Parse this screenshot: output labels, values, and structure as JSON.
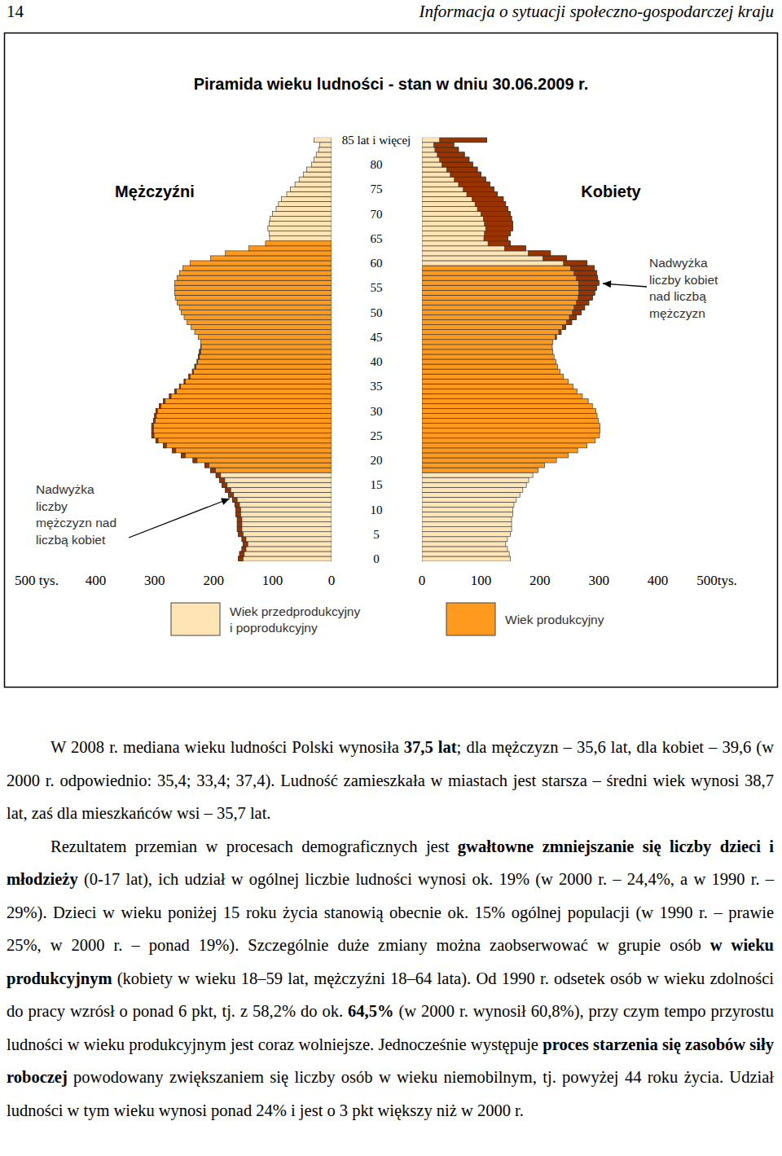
{
  "header": {
    "page_number": "14",
    "title": "Informacja o sytuacji społeczno-gospodarczej kraju"
  },
  "figure": {
    "title": "Piramida wieku ludności - stan w dniu 30.06.2009 r.",
    "legend_entries": [
      {
        "lines": [
          "Wiek przedprodukcyjny",
          "i poprodukcyjny"
        ],
        "color": "#FFE4B5"
      },
      {
        "lines": [
          "Wiek produkcyjny"
        ],
        "color": "#FF9A1F"
      }
    ]
  },
  "chart_data": [
    {
      "type": "bar",
      "orientation": "horizontal",
      "title": "Mężczyźni",
      "categories": [
        "0",
        null,
        null,
        null,
        null,
        "5",
        null,
        null,
        null,
        null,
        "10",
        null,
        null,
        null,
        null,
        "15",
        null,
        null,
        null,
        null,
        "20",
        null,
        null,
        null,
        null,
        "25",
        null,
        null,
        null,
        null,
        "30",
        null,
        null,
        null,
        null,
        "35",
        null,
        null,
        null,
        null,
        "40",
        null,
        null,
        null,
        null,
        "45",
        null,
        null,
        null,
        null,
        "50",
        null,
        null,
        null,
        null,
        "55",
        null,
        null,
        null,
        null,
        "60",
        null,
        null,
        null,
        null,
        "65",
        null,
        null,
        null,
        null,
        "70",
        null,
        null,
        null,
        null,
        "75",
        null,
        null,
        null,
        null,
        "80",
        null,
        null,
        null,
        null,
        "85 lat i więcej"
      ],
      "series": [
        {
          "values": [
            158,
            156,
            152,
            150,
            152,
            158,
            160,
            160,
            160,
            162,
            162,
            164,
            168,
            175,
            180,
            186,
            190,
            196,
            205,
            215,
            235,
            255,
            270,
            285,
            298,
            305,
            305,
            305,
            302,
            300,
            298,
            292,
            285,
            275,
            266,
            258,
            250,
            242,
            236,
            232,
            228,
            226,
            224,
            222,
            222,
            226,
            232,
            238,
            245,
            250,
            255,
            258,
            262,
            265,
            266,
            266,
            266,
            262,
            258,
            252,
            240,
            205,
            180,
            140,
            112,
            105,
            106,
            108,
            106,
            104,
            100,
            94,
            90,
            85,
            76,
            70,
            62,
            55,
            48,
            42,
            34,
            30,
            26,
            22,
            20,
            30
          ],
          "colors": [
            "#FFE4B5",
            "#FFE4B5",
            "#FFE4B5",
            "#FFE4B5",
            "#FFE4B5",
            "#FFE4B5",
            "#FFE4B5",
            "#FFE4B5",
            "#FFE4B5",
            "#FFE4B5",
            "#FFE4B5",
            "#FFE4B5",
            "#FFE4B5",
            "#FFE4B5",
            "#FFE4B5",
            "#FFE4B5",
            "#FFE4B5",
            "#FFE4B5",
            "#FF9A1F",
            "#FF9A1F",
            "#FF9A1F",
            "#FF9A1F",
            "#FF9A1F",
            "#FF9A1F",
            "#FF9A1F",
            "#FF9A1F",
            "#FF9A1F",
            "#FF9A1F",
            "#FF9A1F",
            "#FF9A1F",
            "#FF9A1F",
            "#FF9A1F",
            "#FF9A1F",
            "#FF9A1F",
            "#FF9A1F",
            "#FF9A1F",
            "#FF9A1F",
            "#FF9A1F",
            "#FF9A1F",
            "#FF9A1F",
            "#FF9A1F",
            "#FF9A1F",
            "#FF9A1F",
            "#FF9A1F",
            "#FF9A1F",
            "#FF9A1F",
            "#FF9A1F",
            "#FF9A1F",
            "#FF9A1F",
            "#FF9A1F",
            "#FF9A1F",
            "#FF9A1F",
            "#FF9A1F",
            "#FF9A1F",
            "#FF9A1F",
            "#FF9A1F",
            "#FF9A1F",
            "#FF9A1F",
            "#FF9A1F",
            "#FF9A1F",
            "#FF9A1F",
            "#FF9A1F",
            "#FF9A1F",
            "#FF9A1F",
            "#FF9A1F",
            "#FFE4B5",
            "#FFE4B5",
            "#FFE4B5",
            "#FFE4B5",
            "#FFE4B5",
            "#FFE4B5",
            "#FFE4B5",
            "#FFE4B5",
            "#FFE4B5",
            "#FFE4B5",
            "#FFE4B5",
            "#FFE4B5",
            "#FFE4B5",
            "#FFE4B5",
            "#FFE4B5",
            "#FFE4B5",
            "#FFE4B5",
            "#FFE4B5",
            "#FFE4B5",
            "#FFE4B5",
            "#FFE4B5"
          ]
        }
      ],
      "xlim": [
        500,
        0
      ],
      "xticks": [
        {
          "value": 500,
          "label": "500 tys."
        },
        400,
        300,
        200,
        100,
        0
      ],
      "annotations": [
        {
          "lines": [
            "Nadwyżka",
            "liczby",
            "mężczyzn nad",
            "liczbą kobiet"
          ],
          "color": "#993300"
        }
      ]
    },
    {
      "type": "bar",
      "orientation": "horizontal",
      "title": "Kobiety",
      "categories": [
        "0",
        null,
        null,
        null,
        null,
        "5",
        null,
        null,
        null,
        null,
        "10",
        null,
        null,
        null,
        null,
        "15",
        null,
        null,
        null,
        null,
        "20",
        null,
        null,
        null,
        null,
        "25",
        null,
        null,
        null,
        null,
        "30",
        null,
        null,
        null,
        null,
        "35",
        null,
        null,
        null,
        null,
        "40",
        null,
        null,
        null,
        null,
        "45",
        null,
        null,
        null,
        null,
        "50",
        null,
        null,
        null,
        null,
        "55",
        null,
        null,
        null,
        null,
        "60",
        null,
        null,
        null,
        null,
        "65",
        null,
        null,
        null,
        null,
        "70",
        null,
        null,
        null,
        null,
        "75",
        null,
        null,
        null,
        null,
        "80",
        null,
        null,
        null,
        null,
        "85 lat i więcej"
      ],
      "series": [
        {
          "values": [
            150,
            148,
            145,
            142,
            145,
            150,
            152,
            152,
            152,
            154,
            154,
            156,
            160,
            166,
            171,
            177,
            181,
            188,
            197,
            208,
            228,
            248,
            264,
            280,
            294,
            301,
            302,
            302,
            299,
            297,
            295,
            289,
            282,
            272,
            263,
            256,
            248,
            240,
            234,
            230,
            227,
            224,
            222,
            221,
            222,
            228,
            236,
            244,
            254,
            262,
            270,
            276,
            283,
            289,
            293,
            296,
            300,
            298,
            296,
            292,
            280,
            245,
            218,
            176,
            150,
            146,
            150,
            154,
            154,
            152,
            150,
            146,
            142,
            138,
            128,
            122,
            115,
            108,
            100,
            94,
            86,
            80,
            72,
            62,
            54,
            110
          ],
          "colors": [
            "#FFE4B5",
            "#FFE4B5",
            "#FFE4B5",
            "#FFE4B5",
            "#FFE4B5",
            "#FFE4B5",
            "#FFE4B5",
            "#FFE4B5",
            "#FFE4B5",
            "#FFE4B5",
            "#FFE4B5",
            "#FFE4B5",
            "#FFE4B5",
            "#FFE4B5",
            "#FFE4B5",
            "#FFE4B5",
            "#FFE4B5",
            "#FFE4B5",
            "#FF9A1F",
            "#FF9A1F",
            "#FF9A1F",
            "#FF9A1F",
            "#FF9A1F",
            "#FF9A1F",
            "#FF9A1F",
            "#FF9A1F",
            "#FF9A1F",
            "#FF9A1F",
            "#FF9A1F",
            "#FF9A1F",
            "#FF9A1F",
            "#FF9A1F",
            "#FF9A1F",
            "#FF9A1F",
            "#FF9A1F",
            "#FF9A1F",
            "#FF9A1F",
            "#FF9A1F",
            "#FF9A1F",
            "#FF9A1F",
            "#FF9A1F",
            "#FF9A1F",
            "#FF9A1F",
            "#FF9A1F",
            "#FF9A1F",
            "#FF9A1F",
            "#FF9A1F",
            "#FF9A1F",
            "#FF9A1F",
            "#FF9A1F",
            "#FF9A1F",
            "#FF9A1F",
            "#FF9A1F",
            "#FF9A1F",
            "#FF9A1F",
            "#FF9A1F",
            "#FF9A1F",
            "#FF9A1F",
            "#FF9A1F",
            "#FF9A1F",
            "#FFE4B5",
            "#FFE4B5",
            "#FFE4B5",
            "#FFE4B5",
            "#FFE4B5",
            "#FFE4B5",
            "#FFE4B5",
            "#FFE4B5",
            "#FFE4B5",
            "#FFE4B5",
            "#FFE4B5",
            "#FFE4B5",
            "#FFE4B5",
            "#FFE4B5",
            "#FFE4B5",
            "#FFE4B5",
            "#FFE4B5",
            "#FFE4B5",
            "#FFE4B5",
            "#FFE4B5",
            "#FFE4B5",
            "#FFE4B5",
            "#FFE4B5",
            "#FFE4B5",
            "#FFE4B5",
            "#FFE4B5"
          ]
        }
      ],
      "xlim": [
        0,
        500
      ],
      "xticks": [
        0,
        100,
        200,
        300,
        400,
        {
          "value": 500,
          "label": "500tys."
        }
      ],
      "annotations": [
        {
          "lines": [
            "Nadwyżka",
            "liczby kobiet",
            "nad liczbą",
            "mężczyzn"
          ],
          "color": "#993300"
        }
      ]
    }
  ],
  "body": {
    "paragraphs": [
      [
        {
          "text": "W 2008 r. mediana wieku ludności Polski wynosiła ",
          "bold": false
        },
        {
          "text": "37,5 lat",
          "bold": true
        },
        {
          "text": "; dla mężczyzn – 35,6 lat, dla kobiet – 39,6 (w 2000 r. odpowiednio: 35,4; 33,4; 37,4). Ludność zamieszkała w miastach jest starsza – średni wiek wynosi 38,7 lat, zaś dla mieszkańców wsi – 35,7 lat.",
          "bold": false
        }
      ],
      [
        {
          "text": "Rezultatem przemian w procesach demograficznych jest ",
          "bold": false
        },
        {
          "text": "gwałtowne zmniejszanie się liczby dzieci i młodzieży",
          "bold": true
        },
        {
          "text": " (0-17 lat), ich udział w ogólnej liczbie ludności wynosi ok. 19% (w 2000 r. – 24,4%, a w 1990 r. – 29%). Dzieci w wieku poniżej 15 roku życia stanowią obecnie ok. 15% ogólnej populacji (w 1990 r. – prawie 25%, w 2000 r. – ponad 19%). Szczególnie duże zmiany można zaobserwować w grupie osób ",
          "bold": false
        },
        {
          "text": "w wieku produkcyjnym",
          "bold": true
        },
        {
          "text": " (kobiety w wieku 18–59 lat, mężczyźni 18–64 lata). Od 1990 r. odsetek osób w wieku zdolności do pracy wzrósł o ponad 6 pkt, tj. z 58,2% do ok. ",
          "bold": false
        },
        {
          "text": "64,5%",
          "bold": true
        },
        {
          "text": " (w 2000 r. wynosił 60,8%), przy czym tempo przyrostu ludności w wieku produkcyjnym jest coraz wolniejsze. Jednocześnie występuje ",
          "bold": false
        },
        {
          "text": "proces starzenia się zasobów siły roboczej",
          "bold": true
        },
        {
          "text": " powodowany zwiększaniem się liczby osób w wieku niemobilnym, tj. powyżej 44 roku życia. Udział ludności w tym wieku wynosi ponad 24% i jest o 3 pkt większy niż w 2000 r.",
          "bold": false
        }
      ]
    ]
  }
}
